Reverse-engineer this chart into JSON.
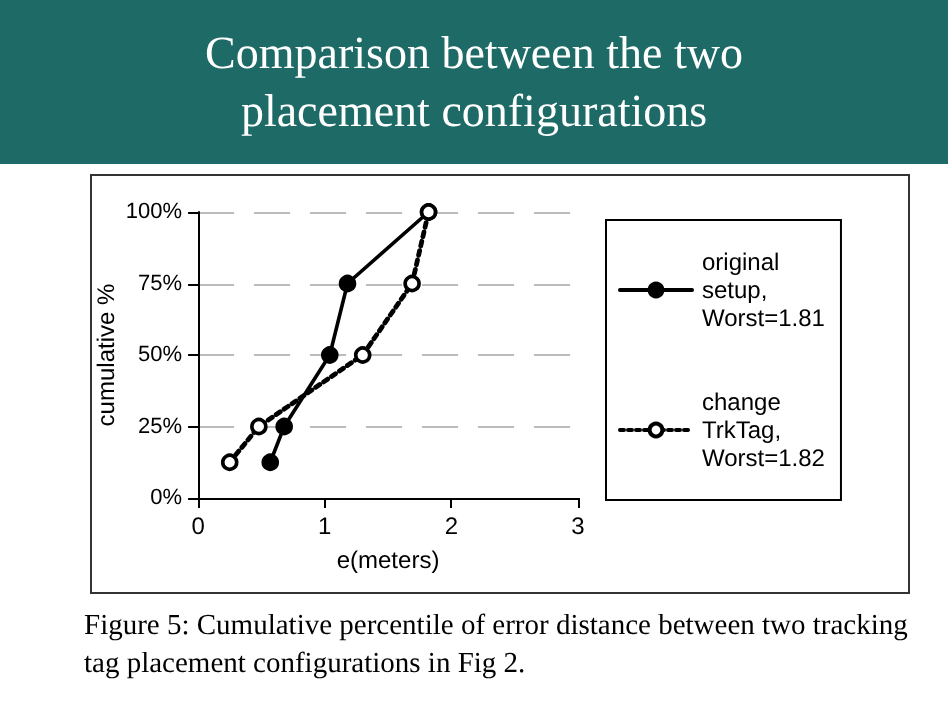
{
  "chart_data": {
    "type": "line",
    "title": "Comparison between the two placement configurations",
    "xlabel": "e(meters)",
    "ylabel": "cumulative %",
    "annotations": [
      "Figure 5: Cumulative percentile of error distance between two tracking tag placement configurations in Fig 2."
    ],
    "series": [
      {
        "name": "original setup, Worst=1.81",
        "color": "#000000",
        "x": [
          0.57,
          0.68,
          1.04,
          1.18,
          1.82
        ],
        "values": [
          12.5,
          25,
          50,
          75,
          100
        ],
        "line_style": "solid",
        "marker": "circle"
      },
      {
        "name": "change TrkTag, Worst=1.82",
        "color": "#000000",
        "x": [
          0.25,
          0.48,
          1.3,
          1.69,
          1.82
        ],
        "values": [
          12.5,
          25,
          50,
          75,
          100
        ],
        "line_style": "dotted",
        "marker": "circle"
      }
    ],
    "xlim": [
      0,
      3
    ],
    "xticks": [
      0,
      1,
      2,
      3
    ],
    "ylim": [
      0,
      100
    ],
    "yticks": [
      {
        "value": 0,
        "label": "0%"
      },
      {
        "value": 25,
        "label": "25%"
      },
      {
        "value": 50,
        "label": "50%"
      },
      {
        "value": 75,
        "label": "75%"
      },
      {
        "value": 100,
        "label": "100%"
      }
    ],
    "grid": "y",
    "legend": "right"
  }
}
